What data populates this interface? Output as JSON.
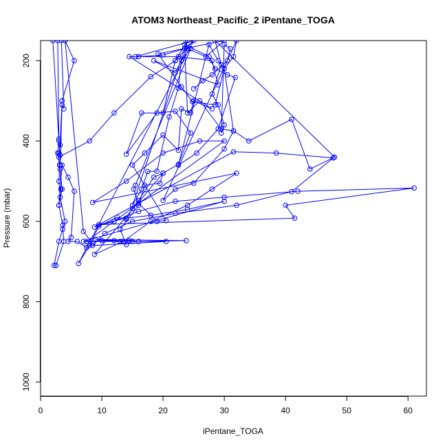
{
  "chart_data": {
    "type": "scatter",
    "title": "ATOM3 Northeast_Pacific_2 iPentane_TOGA",
    "xlabel": "iPentane_TOGA",
    "ylabel": "Pressure (mbar)",
    "xlim": [
      0,
      63
    ],
    "ylim": [
      1035,
      150
    ],
    "y_reversed": true,
    "x_ticks": [
      0,
      10,
      20,
      30,
      40,
      50,
      60
    ],
    "y_ticks": [
      200,
      400,
      600,
      800,
      1000
    ],
    "grid": false,
    "legend": "none",
    "series": [
      {
        "color": "#0000ff",
        "connected": true,
        "points": [
          [
            2.0,
            150
          ],
          [
            3.0,
            400
          ],
          [
            2.8,
            430
          ],
          [
            3.2,
            470
          ],
          [
            3.5,
            520
          ],
          [
            3.0,
            560
          ],
          [
            3.6,
            610
          ],
          [
            3.8,
            650
          ],
          [
            2.5,
            710
          ],
          [
            2.2,
            710
          ],
          [
            3.0,
            650
          ],
          [
            3.6,
            620
          ],
          [
            4.0,
            600
          ],
          [
            3.2,
            540
          ],
          [
            3.0,
            500
          ],
          [
            3.1,
            460
          ],
          [
            3.2,
            435
          ],
          [
            3.0,
            395
          ],
          [
            2.8,
            150
          ],
          [
            3.4,
            150
          ],
          [
            3.8,
            320
          ],
          [
            3.5,
            310
          ],
          [
            3.2,
            460
          ],
          [
            3.3,
            520
          ],
          [
            3.0,
            560
          ],
          [
            3.5,
            460
          ],
          [
            4.5,
            490
          ],
          [
            5.5,
            525
          ],
          [
            5.0,
            640
          ],
          [
            4.5,
            650
          ],
          [
            6.0,
            650
          ],
          [
            7.5,
            665
          ],
          [
            8.5,
            655
          ],
          [
            7.0,
            625
          ],
          [
            4.0,
            150
          ],
          [
            5.5,
            200
          ],
          [
            3.5,
            300
          ],
          [
            3.2,
            410
          ],
          [
            3.0,
            430
          ],
          [
            3.0,
            440
          ],
          [
            8.0,
            400
          ],
          [
            12.0,
            330
          ],
          [
            18.0,
            240
          ],
          [
            22.0,
            200
          ],
          [
            25.0,
            150
          ],
          [
            6.2,
            705
          ],
          [
            8.0,
            660
          ],
          [
            9.5,
            612
          ],
          [
            12.5,
            590
          ],
          [
            14.0,
            595
          ],
          [
            15.0,
            568
          ],
          [
            16.0,
            548
          ],
          [
            18.5,
            490
          ],
          [
            20.0,
            480
          ],
          [
            8.8,
            682
          ],
          [
            13.5,
            650
          ],
          [
            18.0,
            600
          ],
          [
            24.0,
            560
          ],
          [
            28.0,
            520
          ],
          [
            32.0,
            480
          ],
          [
            8.5,
            553
          ],
          [
            14.0,
            500
          ],
          [
            20.0,
            430
          ],
          [
            26.0,
            400
          ],
          [
            30.0,
            400
          ],
          [
            7.5,
            650
          ],
          [
            15.0,
            650
          ],
          [
            23.8,
            648
          ],
          [
            9.0,
            645
          ],
          [
            12.0,
            648
          ],
          [
            14.5,
            648
          ],
          [
            16.0,
            650
          ],
          [
            20.5,
            650
          ],
          [
            8.5,
            660
          ],
          [
            10.5,
            630
          ],
          [
            15.0,
            600
          ],
          [
            22.0,
            580
          ],
          [
            32.0,
            560
          ],
          [
            41.0,
            526
          ],
          [
            47.8,
            442
          ],
          [
            38.5,
            430
          ],
          [
            31.5,
            427
          ],
          [
            8.8,
            614
          ],
          [
            12.0,
            600
          ],
          [
            16.0,
            575
          ],
          [
            22.0,
            550
          ],
          [
            30.0,
            540
          ],
          [
            42.0,
            525
          ],
          [
            61.0,
            517
          ],
          [
            40.0,
            560
          ],
          [
            41.5,
            592
          ],
          [
            9.5,
            608
          ],
          [
            14.0,
            592
          ],
          [
            18.0,
            585
          ],
          [
            24.0,
            570
          ],
          [
            30.0,
            550
          ],
          [
            7.0,
            650
          ],
          [
            10.0,
            648
          ],
          [
            13.0,
            650
          ],
          [
            14.0,
            658
          ],
          [
            13.0,
            620
          ],
          [
            16.0,
            560
          ],
          [
            17.0,
            510
          ],
          [
            19.5,
            505
          ],
          [
            20.0,
            480
          ],
          [
            22.5,
            458
          ],
          [
            24.5,
            380
          ],
          [
            22.0,
            326
          ],
          [
            19.0,
            330
          ],
          [
            14.0,
            433
          ],
          [
            16.5,
            330
          ],
          [
            20.0,
            330
          ],
          [
            22.0,
            200
          ],
          [
            24.0,
            150
          ],
          [
            15.0,
            560
          ],
          [
            16.5,
            520
          ],
          [
            17.5,
            476
          ],
          [
            19.0,
            475
          ],
          [
            21.0,
            340
          ],
          [
            22.5,
            268
          ],
          [
            23.0,
            200
          ],
          [
            24.5,
            170
          ],
          [
            15.5,
            510
          ],
          [
            15.2,
            520
          ],
          [
            16.0,
            555
          ],
          [
            19.0,
            600
          ],
          [
            20.5,
            598
          ],
          [
            15.0,
            460
          ],
          [
            17.0,
            430
          ],
          [
            20.0,
            385
          ],
          [
            22.5,
            423
          ],
          [
            23.0,
            320
          ],
          [
            24.5,
            330
          ],
          [
            25.0,
            300
          ],
          [
            28.0,
            320
          ],
          [
            14.5,
            190
          ],
          [
            16.0,
            190
          ],
          [
            20.0,
            186
          ],
          [
            23.5,
            170
          ],
          [
            25.0,
            150
          ],
          [
            15.5,
            190
          ],
          [
            22.5,
            190
          ],
          [
            28.0,
            200
          ],
          [
            29.0,
            260
          ],
          [
            18.5,
            200
          ],
          [
            22.0,
            230
          ],
          [
            24.0,
            170
          ],
          [
            27.0,
            190
          ],
          [
            30.0,
            150
          ],
          [
            19.2,
            183
          ],
          [
            23.0,
            265
          ],
          [
            24.8,
            302
          ],
          [
            28.5,
            310
          ],
          [
            30.0,
            220
          ],
          [
            31.5,
            190
          ],
          [
            32.0,
            150
          ],
          [
            20.0,
            548
          ],
          [
            22.0,
            520
          ],
          [
            25.0,
            505
          ],
          [
            30.0,
            420
          ],
          [
            31.5,
            375
          ],
          [
            29.5,
            370
          ],
          [
            26.0,
            300
          ],
          [
            24.0,
            330
          ],
          [
            23.5,
            160
          ],
          [
            27.5,
            190
          ],
          [
            28.5,
            220
          ],
          [
            30.5,
            235
          ],
          [
            31.8,
            242
          ],
          [
            29.0,
            370
          ],
          [
            25.5,
            430
          ],
          [
            22.5,
            460
          ],
          [
            27.5,
            160
          ],
          [
            29.0,
            200
          ],
          [
            30.0,
            220
          ],
          [
            31.5,
            375
          ],
          [
            34.0,
            400
          ],
          [
            41.0,
            346
          ],
          [
            44.0,
            470
          ],
          [
            48.0,
            440
          ],
          [
            28.5,
            150
          ],
          [
            29.5,
            210
          ],
          [
            28.0,
            283
          ],
          [
            29.0,
            310
          ],
          [
            30.0,
            360
          ],
          [
            29.5,
            380
          ],
          [
            30.0,
            160
          ],
          [
            31.0,
            170
          ],
          [
            30.5,
            200
          ],
          [
            28.0,
            235
          ],
          [
            26.5,
            250
          ],
          [
            25.0,
            270
          ]
        ]
      }
    ]
  }
}
